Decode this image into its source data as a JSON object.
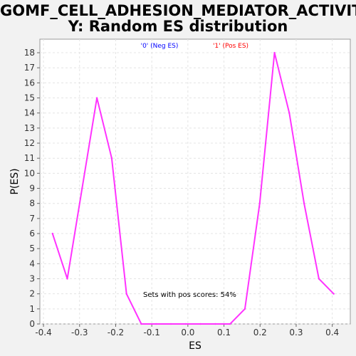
{
  "title_line1": "GOMF_CELL_ADHESION_MEDIATOR_ACTIVIT",
  "title_line2": "Y: Random ES distribution",
  "chart_data": {
    "type": "line",
    "title": "GOMF_CELL_ADHESION_MEDIATOR_ACTIVITY: Random ES distribution",
    "xlabel": "ES",
    "ylabel": "P(ES)",
    "xlim": [
      -0.41,
      0.45
    ],
    "ylim": [
      0,
      18.9
    ],
    "grid": true,
    "x_ticks": [
      -0.4,
      -0.3,
      -0.2,
      -0.1,
      0.0,
      0.1,
      0.2,
      0.3,
      0.4
    ],
    "x_tick_labels": [
      "-0.4",
      "-0.3",
      "-0.2",
      "-0.1",
      "0.0",
      "0.1",
      "0.2",
      "0.3",
      "0.4"
    ],
    "y_ticks": [
      0,
      1,
      2,
      3,
      4,
      5,
      6,
      7,
      8,
      9,
      10,
      11,
      12,
      13,
      14,
      15,
      16,
      17,
      18
    ],
    "legend": [
      {
        "label": "'0' (Neg ES)",
        "color": "#0000ff"
      },
      {
        "label": "'1' (Pos ES)",
        "color": "#ff0000"
      }
    ],
    "annotation": "Sets with pos scores: 54%",
    "series": [
      {
        "color": "#ff33ff",
        "x": [
          -0.375,
          -0.334,
          -0.293,
          -0.252,
          -0.211,
          -0.17,
          -0.129,
          -0.088,
          -0.047,
          -0.006,
          0.035,
          0.076,
          0.117,
          0.158,
          0.199,
          0.24,
          0.281,
          0.322,
          0.363,
          0.404
        ],
        "y": [
          6,
          3,
          9,
          15,
          11,
          2,
          0,
          0,
          0,
          0,
          0,
          0,
          0,
          1,
          8,
          18,
          14,
          8,
          3,
          2
        ]
      }
    ]
  }
}
